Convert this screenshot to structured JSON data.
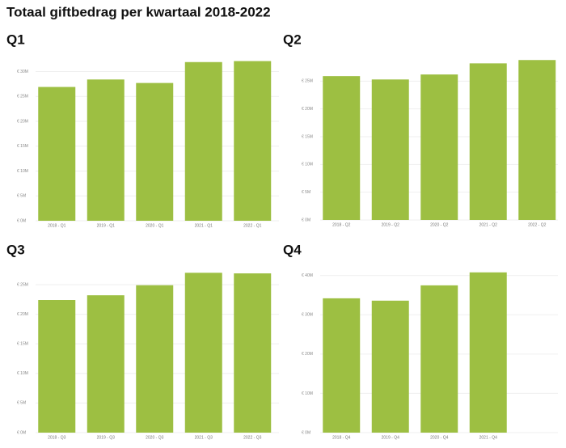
{
  "title": "Totaal giftbedrag per kwartaal 2018-2022",
  "chart_data": [
    {
      "type": "bar",
      "title": "Q1",
      "color": "#9dbf42",
      "grid": true,
      "categories": [
        "2018 - Q1",
        "2019 - Q1",
        "2020 - Q1",
        "2021 - Q1",
        "2022 - Q1"
      ],
      "values": [
        26.9,
        28.4,
        27.7,
        31.9,
        32.1
      ],
      "ylim": [
        0,
        33
      ],
      "yticks": [
        {
          "value": 0,
          "label": "€ 0M"
        },
        {
          "value": 5,
          "label": "€ 5M"
        },
        {
          "value": 10,
          "label": "€ 10M"
        },
        {
          "value": 15,
          "label": "€ 15M"
        },
        {
          "value": 20,
          "label": "€ 20M"
        },
        {
          "value": 25,
          "label": "€ 25M"
        },
        {
          "value": 30,
          "label": "€ 30M"
        }
      ]
    },
    {
      "type": "bar",
      "title": "Q2",
      "color": "#9dbf42",
      "grid": true,
      "categories": [
        "2018 - Q2",
        "2019 - Q2",
        "2020 - Q2",
        "2021 - Q2",
        "2022 - Q2"
      ],
      "values": [
        25.9,
        25.3,
        26.2,
        28.2,
        28.8
      ],
      "ylim": [
        0,
        30
      ],
      "yticks": [
        {
          "value": 0,
          "label": "€ 0M"
        },
        {
          "value": 5,
          "label": "€ 5M"
        },
        {
          "value": 10,
          "label": "€ 10M"
        },
        {
          "value": 15,
          "label": "€ 15M"
        },
        {
          "value": 20,
          "label": "€ 20M"
        },
        {
          "value": 25,
          "label": "€ 25M"
        }
      ]
    },
    {
      "type": "bar",
      "title": "Q3",
      "color": "#9dbf42",
      "grid": true,
      "categories": [
        "2018 - Q3",
        "2019 - Q3",
        "2020 - Q3",
        "2021 - Q3",
        "2022 - Q3"
      ],
      "values": [
        22.4,
        23.2,
        24.9,
        27.0,
        26.9
      ],
      "ylim": [
        0,
        28
      ],
      "yticks": [
        {
          "value": 0,
          "label": "€ 0M"
        },
        {
          "value": 5,
          "label": "€ 5M"
        },
        {
          "value": 10,
          "label": "€ 10M"
        },
        {
          "value": 15,
          "label": "€ 15M"
        },
        {
          "value": 20,
          "label": "€ 20M"
        },
        {
          "value": 25,
          "label": "€ 25M"
        }
      ]
    },
    {
      "type": "bar",
      "title": "Q4",
      "color": "#9dbf42",
      "grid": true,
      "categories": [
        "2018 - Q4",
        "2019 - Q4",
        "2020 - Q4",
        "2021 - Q4"
      ],
      "values": [
        34.2,
        33.6,
        37.5,
        40.8
      ],
      "ylim": [
        0,
        42
      ],
      "yticks": [
        {
          "value": 0,
          "label": "€ 0M"
        },
        {
          "value": 10,
          "label": "€ 10M"
        },
        {
          "value": 20,
          "label": "€ 20M"
        },
        {
          "value": 30,
          "label": "€ 30M"
        },
        {
          "value": 40,
          "label": "€ 40M"
        }
      ]
    }
  ]
}
